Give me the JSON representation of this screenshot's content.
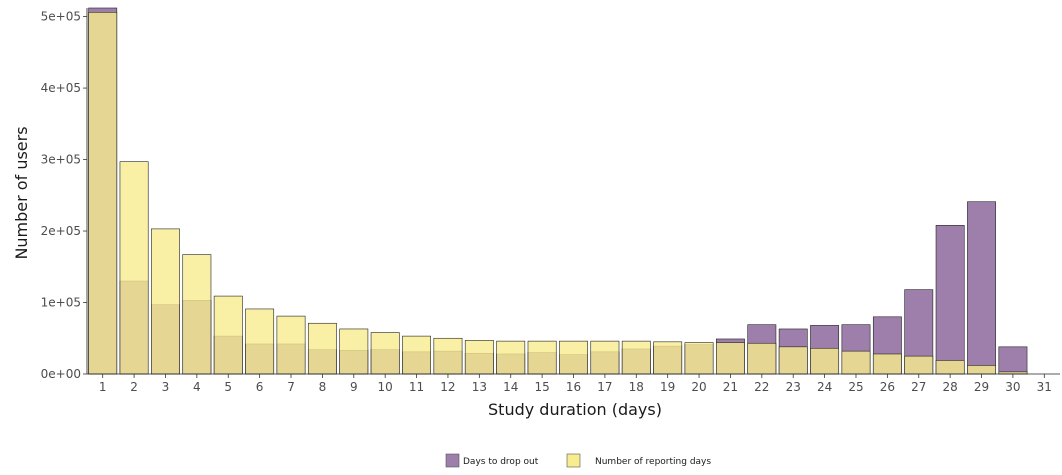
{
  "chart_data": {
    "type": "bar",
    "xlabel": "Study duration (days)",
    "ylabel": "Number of users",
    "ylim": [
      0,
      512000
    ],
    "y_ticks": [
      {
        "value": 0,
        "label": "0e+00"
      },
      {
        "value": 100000,
        "label": "1e+05"
      },
      {
        "value": 200000,
        "label": "2e+05"
      },
      {
        "value": 300000,
        "label": "3e+05"
      },
      {
        "value": 400000,
        "label": "4e+05"
      },
      {
        "value": 500000,
        "label": "5e+05"
      }
    ],
    "categories": [
      "1",
      "2",
      "3",
      "4",
      "5",
      "6",
      "7",
      "8",
      "9",
      "10",
      "11",
      "12",
      "13",
      "14",
      "15",
      "16",
      "17",
      "18",
      "19",
      "20",
      "21",
      "22",
      "23",
      "24",
      "25",
      "26",
      "27",
      "28",
      "29",
      "30",
      "31"
    ],
    "series": [
      {
        "name": "Days to drop out",
        "color": "#9e7fac",
        "values": [
          512000,
          130000,
          97000,
          103000,
          53000,
          42000,
          42000,
          34000,
          33000,
          34000,
          31000,
          32000,
          29000,
          28000,
          30000,
          27000,
          31000,
          35000,
          39000,
          41000,
          49000,
          69000,
          63000,
          68000,
          69000,
          80000,
          118000,
          208000,
          241000,
          38000,
          0
        ]
      },
      {
        "name": "Number of reporting days",
        "color": "#f7ec8e",
        "values": [
          506000,
          297000,
          203000,
          167000,
          109000,
          91000,
          81000,
          71000,
          63000,
          58000,
          53000,
          50000,
          47000,
          46000,
          46000,
          46000,
          46000,
          46000,
          45000,
          44000,
          44000,
          43000,
          38000,
          36000,
          32000,
          28000,
          25000,
          19000,
          12000,
          3000,
          0
        ]
      }
    ],
    "legend_position": "bottom",
    "grid": false
  }
}
